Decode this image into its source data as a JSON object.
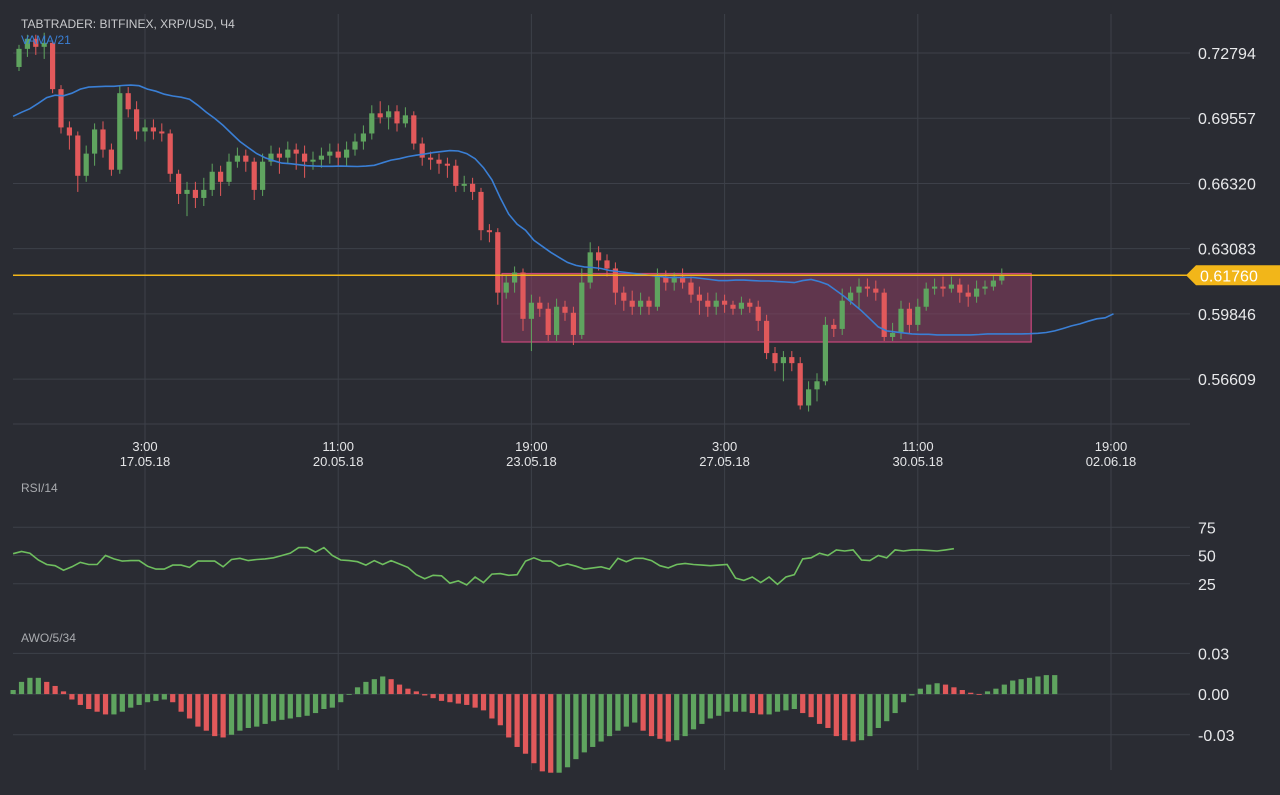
{
  "header": {
    "title": "TABTRADER: BITFINEX, XRP/USD, Ч4",
    "indicator": "VAMA/21"
  },
  "rsi_panel": {
    "title": "RSI/14"
  },
  "awo_panel": {
    "title": "AWO/5/34"
  },
  "colors": {
    "background": "#2a2c33",
    "grid": "#3d4049",
    "up": "#5fa45f",
    "down": "#e2595b",
    "vama": "#3a7fd5",
    "rsi": "#6fbf5f",
    "price_line": "#f2b619",
    "zone_fill": "#8c3f63",
    "zone_border": "#c9467c"
  },
  "chart_data": [
    {
      "type": "candlestick",
      "name": "price",
      "y_ticks": [
        "0.72794",
        "0.69557",
        "0.66320",
        "0.63083",
        "0.59846",
        "0.56609"
      ],
      "ylim": [
        0.5438,
        0.7473
      ],
      "x_ticks": [
        {
          "time": "3:00",
          "date": "17.05.18",
          "index": 15
        },
        {
          "time": "11:00",
          "date": "20.05.18",
          "index": 38
        },
        {
          "time": "19:00",
          "date": "23.05.18",
          "index": 61
        },
        {
          "time": "3:00",
          "date": "27.05.18",
          "index": 84
        },
        {
          "time": "11:00",
          "date": "30.05.18",
          "index": 107
        },
        {
          "time": "19:00",
          "date": "02.06.18",
          "index": 130
        }
      ],
      "current_price": "0.61760",
      "current_value": 0.6176,
      "zone": {
        "from_index": 57.5,
        "to_index": 120.5,
        "low": 0.5845,
        "high": 0.6185
      },
      "candles": [
        [
          0.721,
          0.73,
          0.732,
          0.719
        ],
        [
          0.73,
          0.735,
          0.737,
          0.726
        ],
        [
          0.735,
          0.731,
          0.737,
          0.727
        ],
        [
          0.731,
          0.733,
          0.738,
          0.725
        ],
        [
          0.733,
          0.71,
          0.734,
          0.708
        ],
        [
          0.71,
          0.691,
          0.712,
          0.688
        ],
        [
          0.691,
          0.687,
          0.694,
          0.68
        ],
        [
          0.687,
          0.667,
          0.689,
          0.659
        ],
        [
          0.667,
          0.678,
          0.682,
          0.664
        ],
        [
          0.678,
          0.69,
          0.693,
          0.672
        ],
        [
          0.69,
          0.68,
          0.694,
          0.676
        ],
        [
          0.68,
          0.67,
          0.683,
          0.667
        ],
        [
          0.67,
          0.708,
          0.712,
          0.668
        ],
        [
          0.708,
          0.7,
          0.711,
          0.696
        ],
        [
          0.7,
          0.689,
          0.704,
          0.685
        ],
        [
          0.689,
          0.691,
          0.695,
          0.684
        ],
        [
          0.691,
          0.689,
          0.695,
          0.685
        ],
        [
          0.689,
          0.688,
          0.693,
          0.684
        ],
        [
          0.688,
          0.668,
          0.69,
          0.664
        ],
        [
          0.668,
          0.658,
          0.67,
          0.653
        ],
        [
          0.658,
          0.66,
          0.664,
          0.647
        ],
        [
          0.66,
          0.656,
          0.664,
          0.651
        ],
        [
          0.656,
          0.66,
          0.666,
          0.652
        ],
        [
          0.66,
          0.669,
          0.673,
          0.657
        ],
        [
          0.669,
          0.664,
          0.672,
          0.657
        ],
        [
          0.664,
          0.674,
          0.678,
          0.662
        ],
        [
          0.674,
          0.677,
          0.681,
          0.671
        ],
        [
          0.677,
          0.674,
          0.68,
          0.669
        ],
        [
          0.674,
          0.66,
          0.676,
          0.655
        ],
        [
          0.66,
          0.674,
          0.678,
          0.657
        ],
        [
          0.674,
          0.678,
          0.682,
          0.672
        ],
        [
          0.678,
          0.676,
          0.681,
          0.668
        ],
        [
          0.676,
          0.68,
          0.684,
          0.673
        ],
        [
          0.68,
          0.678,
          0.683,
          0.67
        ],
        [
          0.678,
          0.674,
          0.682,
          0.666
        ],
        [
          0.674,
          0.675,
          0.679,
          0.67
        ],
        [
          0.675,
          0.677,
          0.681,
          0.671
        ],
        [
          0.677,
          0.679,
          0.683,
          0.673
        ],
        [
          0.679,
          0.676,
          0.683,
          0.672
        ],
        [
          0.676,
          0.68,
          0.684,
          0.672
        ],
        [
          0.68,
          0.684,
          0.688,
          0.677
        ],
        [
          0.684,
          0.688,
          0.692,
          0.68
        ],
        [
          0.688,
          0.698,
          0.702,
          0.685
        ],
        [
          0.698,
          0.696,
          0.704,
          0.693
        ],
        [
          0.696,
          0.699,
          0.702,
          0.69
        ],
        [
          0.699,
          0.693,
          0.702,
          0.689
        ],
        [
          0.693,
          0.697,
          0.701,
          0.691
        ],
        [
          0.697,
          0.683,
          0.699,
          0.68
        ],
        [
          0.683,
          0.676,
          0.686,
          0.672
        ],
        [
          0.676,
          0.675,
          0.679,
          0.67
        ],
        [
          0.675,
          0.673,
          0.678,
          0.668
        ],
        [
          0.673,
          0.672,
          0.676,
          0.666
        ],
        [
          0.672,
          0.662,
          0.675,
          0.659
        ],
        [
          0.662,
          0.663,
          0.667,
          0.659
        ],
        [
          0.663,
          0.659,
          0.666,
          0.655
        ],
        [
          0.659,
          0.64,
          0.661,
          0.635
        ],
        [
          0.64,
          0.639,
          0.643,
          0.634
        ],
        [
          0.639,
          0.609,
          0.641,
          0.603
        ],
        [
          0.609,
          0.614,
          0.618,
          0.606
        ],
        [
          0.614,
          0.619,
          0.622,
          0.609
        ],
        [
          0.619,
          0.596,
          0.621,
          0.59
        ],
        [
          0.596,
          0.604,
          0.608,
          0.58
        ],
        [
          0.604,
          0.601,
          0.607,
          0.597
        ],
        [
          0.601,
          0.588,
          0.604,
          0.585
        ],
        [
          0.588,
          0.602,
          0.606,
          0.585
        ],
        [
          0.602,
          0.599,
          0.605,
          0.595
        ],
        [
          0.599,
          0.588,
          0.602,
          0.583
        ],
        [
          0.588,
          0.614,
          0.621,
          0.586
        ],
        [
          0.614,
          0.629,
          0.634,
          0.611
        ],
        [
          0.629,
          0.625,
          0.632,
          0.62
        ],
        [
          0.625,
          0.621,
          0.628,
          0.617
        ],
        [
          0.621,
          0.609,
          0.624,
          0.603
        ],
        [
          0.609,
          0.605,
          0.612,
          0.6
        ],
        [
          0.605,
          0.602,
          0.61,
          0.598
        ],
        [
          0.602,
          0.605,
          0.609,
          0.598
        ],
        [
          0.605,
          0.602,
          0.607,
          0.598
        ],
        [
          0.602,
          0.617,
          0.621,
          0.6
        ],
        [
          0.617,
          0.614,
          0.62,
          0.61
        ],
        [
          0.614,
          0.617,
          0.619,
          0.61
        ],
        [
          0.617,
          0.614,
          0.621,
          0.611
        ],
        [
          0.614,
          0.608,
          0.617,
          0.604
        ],
        [
          0.608,
          0.605,
          0.612,
          0.598
        ],
        [
          0.605,
          0.602,
          0.609,
          0.597
        ],
        [
          0.602,
          0.605,
          0.609,
          0.598
        ],
        [
          0.605,
          0.603,
          0.608,
          0.599
        ],
        [
          0.603,
          0.601,
          0.605,
          0.598
        ],
        [
          0.601,
          0.604,
          0.607,
          0.598
        ],
        [
          0.604,
          0.602,
          0.606,
          0.599
        ],
        [
          0.602,
          0.595,
          0.605,
          0.59
        ],
        [
          0.595,
          0.579,
          0.598,
          0.576
        ],
        [
          0.579,
          0.574,
          0.582,
          0.57
        ],
        [
          0.574,
          0.577,
          0.58,
          0.565
        ],
        [
          0.577,
          0.574,
          0.58,
          0.57
        ],
        [
          0.574,
          0.553,
          0.577,
          0.551
        ],
        [
          0.553,
          0.561,
          0.565,
          0.55
        ],
        [
          0.561,
          0.565,
          0.569,
          0.555
        ],
        [
          0.565,
          0.593,
          0.597,
          0.563
        ],
        [
          0.593,
          0.591,
          0.596,
          0.587
        ],
        [
          0.591,
          0.605,
          0.611,
          0.588
        ],
        [
          0.605,
          0.609,
          0.612,
          0.603
        ],
        [
          0.609,
          0.612,
          0.616,
          0.601
        ],
        [
          0.612,
          0.611,
          0.616,
          0.607
        ],
        [
          0.611,
          0.609,
          0.615,
          0.605
        ],
        [
          0.609,
          0.587,
          0.611,
          0.585
        ],
        [
          0.587,
          0.589,
          0.594,
          0.585
        ],
        [
          0.589,
          0.601,
          0.605,
          0.586
        ],
        [
          0.601,
          0.593,
          0.604,
          0.589
        ],
        [
          0.593,
          0.602,
          0.606,
          0.59
        ],
        [
          0.602,
          0.611,
          0.614,
          0.6
        ],
        [
          0.611,
          0.612,
          0.616,
          0.608
        ],
        [
          0.612,
          0.611,
          0.617,
          0.607
        ],
        [
          0.611,
          0.613,
          0.617,
          0.609
        ],
        [
          0.613,
          0.609,
          0.616,
          0.604
        ],
        [
          0.609,
          0.607,
          0.613,
          0.602
        ],
        [
          0.607,
          0.611,
          0.615,
          0.604
        ],
        [
          0.611,
          0.612,
          0.615,
          0.608
        ],
        [
          0.612,
          0.615,
          0.618,
          0.61
        ],
        [
          0.615,
          0.618,
          0.621,
          0.613
        ]
      ],
      "vama": [
        0.6965,
        0.6985,
        0.7003,
        0.703,
        0.7058,
        0.707,
        0.7067,
        0.708,
        0.71,
        0.711,
        0.7112,
        0.7114,
        0.7114,
        0.7118,
        0.712,
        0.7117,
        0.71,
        0.709,
        0.7075,
        0.7066,
        0.706,
        0.705,
        0.702,
        0.6985,
        0.6955,
        0.692,
        0.688,
        0.684,
        0.681,
        0.678,
        0.676,
        0.6745,
        0.6733,
        0.673,
        0.6725,
        0.672,
        0.6718,
        0.6717,
        0.6717,
        0.6718,
        0.6717,
        0.6716,
        0.6718,
        0.6722,
        0.6735,
        0.6748,
        0.6755,
        0.6765,
        0.6772,
        0.6778,
        0.6785,
        0.679,
        0.6795,
        0.6793,
        0.678,
        0.6755,
        0.671,
        0.665,
        0.656,
        0.648,
        0.643,
        0.64,
        0.635,
        0.632,
        0.629,
        0.6265,
        0.624,
        0.6225,
        0.6218,
        0.6215,
        0.621,
        0.62,
        0.6195,
        0.619,
        0.6185,
        0.618,
        0.6175,
        0.617,
        0.6165,
        0.6165,
        0.6165,
        0.6165,
        0.616,
        0.6155,
        0.615,
        0.615,
        0.6152,
        0.6152,
        0.615,
        0.6148,
        0.6148,
        0.6145,
        0.6143,
        0.614,
        0.615,
        0.6155,
        0.6145,
        0.613,
        0.61,
        0.607,
        0.6035,
        0.6,
        0.596,
        0.592,
        0.59,
        0.5895,
        0.589,
        0.5885,
        0.5883,
        0.5883,
        0.588,
        0.588,
        0.588,
        0.588,
        0.588,
        0.5882,
        0.5885,
        0.5885,
        0.5885,
        0.5885,
        0.5885,
        0.5886,
        0.5888,
        0.5892,
        0.59,
        0.5912,
        0.5925,
        0.5935,
        0.5948,
        0.596,
        0.5965,
        0.5985
      ]
    },
    {
      "type": "line",
      "name": "RSI/14",
      "y_ticks": [
        "75",
        "50",
        "25"
      ],
      "ylim": [
        0,
        100
      ],
      "values": [
        51.6,
        53.5,
        52.0,
        46.0,
        42.0,
        41.0,
        37.0,
        40.0,
        44.0,
        42.0,
        42.0,
        50.0,
        47.0,
        45.0,
        45.5,
        45.5,
        40.5,
        38.0,
        38.0,
        41.5,
        41.5,
        39.5,
        45.0,
        45.0,
        45.0,
        40.0,
        46.5,
        47.5,
        45.5,
        46.5,
        47.0,
        48.0,
        50.0,
        52.0,
        57.0,
        57.0,
        53.0,
        57.0,
        50.0,
        46.0,
        45.5,
        44.5,
        41.5,
        45.5,
        42.0,
        45.5,
        42.5,
        39.5,
        33.0,
        29.5,
        32.5,
        32.0,
        25.5,
        27.5,
        24.0,
        31.0,
        26.0,
        33.5,
        34.0,
        32.5,
        33.0,
        45.0,
        48.0,
        45.0,
        45.0,
        40.5,
        42.5,
        40.5,
        38.0,
        39.0,
        40.0,
        38.0,
        47.5,
        44.5,
        47.5,
        47.5,
        45.5,
        41.0,
        39.0,
        42.0,
        43.0,
        42.0,
        41.5,
        41.0,
        41.5,
        42.0,
        30.0,
        28.0,
        31.0,
        26.0,
        31.0,
        24.5,
        31.0,
        33.0,
        47.0,
        48.0,
        52.0,
        50.0,
        55.0,
        54.0,
        55.0,
        46.0,
        45.5,
        50.0,
        48.0,
        55.0,
        54.0,
        55.0,
        55.0,
        54.5,
        54.0,
        55.0,
        56.0
      ]
    },
    {
      "type": "bar",
      "name": "AWO/5/34",
      "y_ticks": [
        "0.03",
        "0.00",
        "-0.03"
      ],
      "ylim": [
        -0.056,
        0.034
      ],
      "values": [
        0.003,
        0.009,
        0.012,
        0.012,
        0.009,
        0.006,
        0.002,
        -0.004,
        -0.008,
        -0.011,
        -0.013,
        -0.015,
        -0.015,
        -0.013,
        -0.01,
        -0.008,
        -0.006,
        -0.005,
        -0.004,
        -0.006,
        -0.013,
        -0.018,
        -0.024,
        -0.027,
        -0.031,
        -0.032,
        -0.03,
        -0.027,
        -0.025,
        -0.024,
        -0.022,
        -0.02,
        -0.019,
        -0.018,
        -0.017,
        -0.016,
        -0.014,
        -0.011,
        -0.01,
        -0.006,
        0.0,
        0.005,
        0.009,
        0.011,
        0.013,
        0.011,
        0.007,
        0.004,
        0.002,
        -0.001,
        -0.003,
        -0.005,
        -0.006,
        -0.007,
        -0.008,
        -0.01,
        -0.012,
        -0.018,
        -0.023,
        -0.032,
        -0.039,
        -0.044,
        -0.051,
        -0.057,
        -0.058,
        -0.058,
        -0.054,
        -0.048,
        -0.043,
        -0.039,
        -0.035,
        -0.031,
        -0.027,
        -0.024,
        -0.021,
        -0.027,
        -0.031,
        -0.033,
        -0.035,
        -0.034,
        -0.031,
        -0.026,
        -0.022,
        -0.018,
        -0.016,
        -0.013,
        -0.013,
        -0.013,
        -0.014,
        -0.015,
        -0.015,
        -0.013,
        -0.012,
        -0.011,
        -0.014,
        -0.017,
        -0.022,
        -0.025,
        -0.031,
        -0.034,
        -0.035,
        -0.034,
        -0.031,
        -0.025,
        -0.02,
        -0.014,
        -0.006,
        -0.001,
        0.004,
        0.007,
        0.008,
        0.007,
        0.005,
        0.003,
        0.001,
        0.0,
        0.002,
        0.004,
        0.007,
        0.01,
        0.011,
        0.012,
        0.013,
        0.014,
        0.014
      ]
    }
  ]
}
